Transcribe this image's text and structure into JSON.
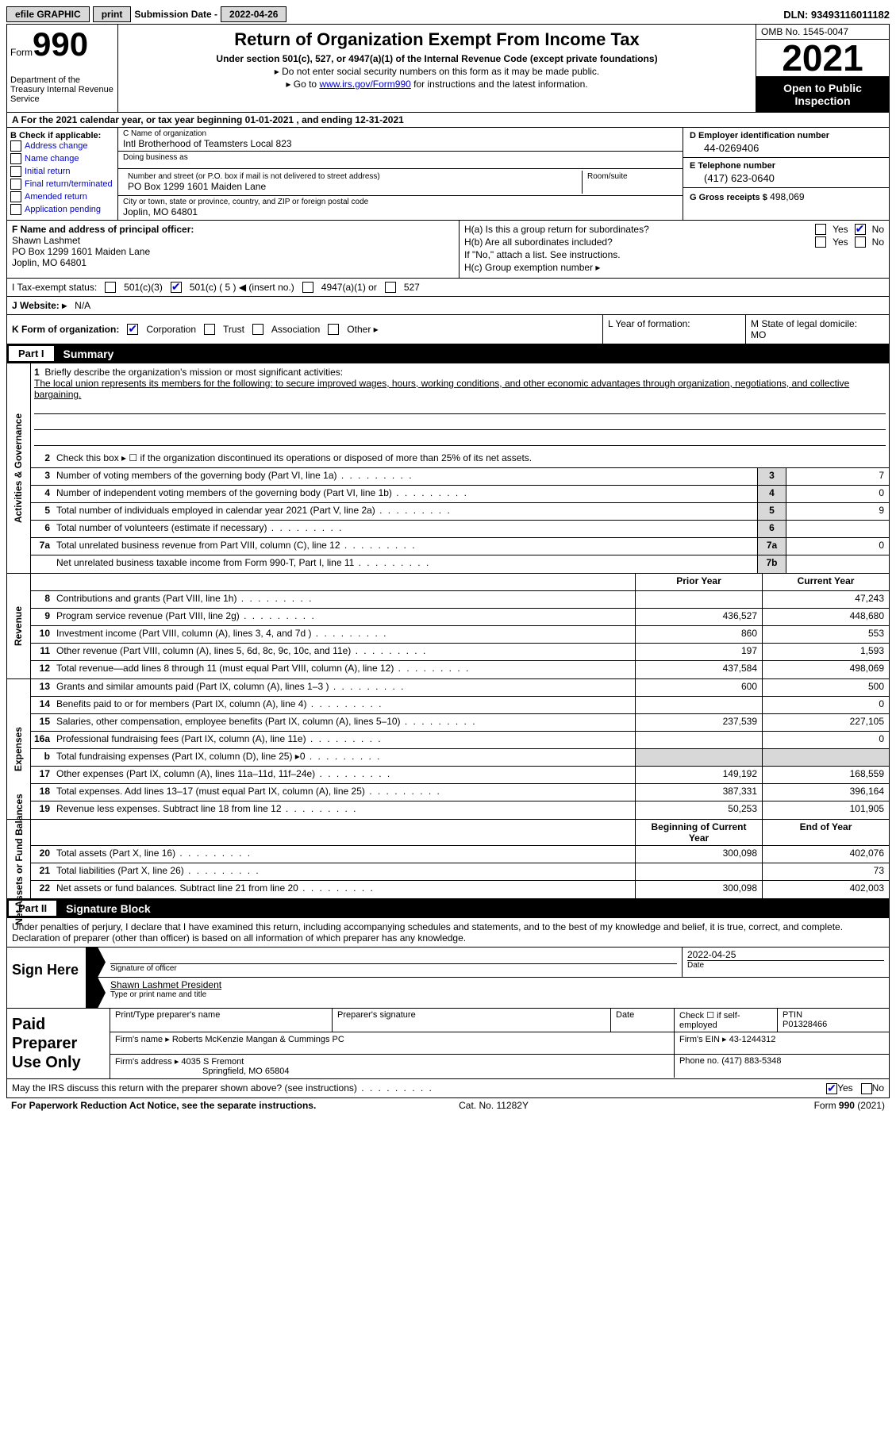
{
  "topbar": {
    "efile": "efile GRAPHIC",
    "print": "print",
    "sub_lbl": "Submission Date -",
    "sub_date": "2022-04-26",
    "dln_lbl": "DLN:",
    "dln": "93493116011182"
  },
  "header": {
    "form": "Form",
    "num": "990",
    "dept": "Department of the Treasury\nInternal Revenue Service",
    "title": "Return of Organization Exempt From Income Tax",
    "sub": "Under section 501(c), 527, or 4947(a)(1) of the Internal Revenue Code (except private foundations)",
    "note1": "▸ Do not enter social security numbers on this form as it may be made public.",
    "note2_pre": "▸ Go to ",
    "note2_link": "www.irs.gov/Form990",
    "note2_post": " for instructions and the latest information.",
    "omb": "OMB No. 1545-0047",
    "year": "2021",
    "inspect": "Open to Public Inspection"
  },
  "rowA": {
    "text_pre": "A For the 2021 calendar year, or tax year beginning ",
    "begin": "01-01-2021",
    "mid": "   , and ending ",
    "end": "12-31-2021"
  },
  "colB": {
    "hdr": "B Check if applicable:",
    "opts": [
      "Address change",
      "Name change",
      "Initial return",
      "Final return/terminated",
      "Amended return",
      "Application pending"
    ]
  },
  "colC": {
    "name_lbl": "C Name of organization",
    "name": "Intl Brotherhood of Teamsters Local 823",
    "dba_lbl": "Doing business as",
    "addr_lbl": "Number and street (or P.O. box if mail is not delivered to street address)",
    "addr": "PO Box 1299 1601 Maiden Lane",
    "room_lbl": "Room/suite",
    "city_lbl": "City or town, state or province, country, and ZIP or foreign postal code",
    "city": "Joplin, MO  64801"
  },
  "colD": {
    "d_lbl": "D Employer identification number",
    "d_val": "44-0269406",
    "e_lbl": "E Telephone number",
    "e_val": "(417) 623-0640",
    "g_lbl": "G Gross receipts $",
    "g_val": "498,069"
  },
  "rowF": {
    "lbl": "F  Name and address of principal officer:",
    "name": "Shawn Lashmet",
    "addr": "PO Box 1299 1601 Maiden Lane",
    "city": "Joplin, MO  64801"
  },
  "rowH": {
    "a": "H(a)  Is this a group return for subordinates?",
    "b": "H(b)  Are all subordinates included?",
    "bnote": "If \"No,\" attach a list. See instructions.",
    "c": "H(c)  Group exemption number ▸",
    "yes": "Yes",
    "no": "No"
  },
  "rowI": {
    "lbl": "I   Tax-exempt status:",
    "o1": "501(c)(3)",
    "o2": "501(c) ( 5 ) ◀ (insert no.)",
    "o3": "4947(a)(1) or",
    "o4": "527"
  },
  "rowJ": {
    "lbl": "J   Website: ▸",
    "val": "N/A"
  },
  "rowK": {
    "lbl": "K Form of organization:",
    "o1": "Corporation",
    "o2": "Trust",
    "o3": "Association",
    "o4": "Other ▸"
  },
  "rowL": {
    "lbl": "L Year of formation:"
  },
  "rowM": {
    "lbl": "M State of legal domicile:",
    "val": "MO"
  },
  "part1": {
    "num": "Part I",
    "title": "Summary"
  },
  "sidebars": [
    "Activities & Governance",
    "Revenue",
    "Expenses",
    "Net Assets or Fund Balances"
  ],
  "summary": {
    "l1_lbl": "Briefly describe the organization's mission or most significant activities:",
    "l1_txt": "The local union represents its members for the following: to secure improved wages, hours, working conditions, and other economic advantages through organization, negotiations, and collective bargaining.",
    "l2": "Check this box ▸ ☐  if the organization discontinued its operations or disposed of more than 25% of its net assets.",
    "l3": {
      "t": "Number of voting members of the governing body (Part VI, line 1a)",
      "b": "3",
      "v": "7"
    },
    "l4": {
      "t": "Number of independent voting members of the governing body (Part VI, line 1b)",
      "b": "4",
      "v": "0"
    },
    "l5": {
      "t": "Total number of individuals employed in calendar year 2021 (Part V, line 2a)",
      "b": "5",
      "v": "9"
    },
    "l6": {
      "t": "Total number of volunteers (estimate if necessary)",
      "b": "6",
      "v": ""
    },
    "l7a": {
      "t": "Total unrelated business revenue from Part VIII, column (C), line 12",
      "b": "7a",
      "v": "0"
    },
    "l7b": {
      "t": "Net unrelated business taxable income from Form 990-T, Part I, line 11",
      "b": "7b",
      "v": ""
    },
    "hdr_prior": "Prior Year",
    "hdr_curr": "Current Year",
    "rows_rev": [
      {
        "n": "8",
        "t": "Contributions and grants (Part VIII, line 1h)",
        "p": "",
        "c": "47,243"
      },
      {
        "n": "9",
        "t": "Program service revenue (Part VIII, line 2g)",
        "p": "436,527",
        "c": "448,680"
      },
      {
        "n": "10",
        "t": "Investment income (Part VIII, column (A), lines 3, 4, and 7d )",
        "p": "860",
        "c": "553"
      },
      {
        "n": "11",
        "t": "Other revenue (Part VIII, column (A), lines 5, 6d, 8c, 9c, 10c, and 11e)",
        "p": "197",
        "c": "1,593"
      },
      {
        "n": "12",
        "t": "Total revenue—add lines 8 through 11 (must equal Part VIII, column (A), line 12)",
        "p": "437,584",
        "c": "498,069"
      }
    ],
    "rows_exp": [
      {
        "n": "13",
        "t": "Grants and similar amounts paid (Part IX, column (A), lines 1–3 )",
        "p": "600",
        "c": "500"
      },
      {
        "n": "14",
        "t": "Benefits paid to or for members (Part IX, column (A), line 4)",
        "p": "",
        "c": "0"
      },
      {
        "n": "15",
        "t": "Salaries, other compensation, employee benefits (Part IX, column (A), lines 5–10)",
        "p": "237,539",
        "c": "227,105"
      },
      {
        "n": "16a",
        "t": "Professional fundraising fees (Part IX, column (A), line 11e)",
        "p": "",
        "c": "0"
      },
      {
        "n": "b",
        "t": "Total fundraising expenses (Part IX, column (D), line 25) ▸0",
        "p": "SHADE",
        "c": "SHADE"
      },
      {
        "n": "17",
        "t": "Other expenses (Part IX, column (A), lines 11a–11d, 11f–24e)",
        "p": "149,192",
        "c": "168,559"
      },
      {
        "n": "18",
        "t": "Total expenses. Add lines 13–17 (must equal Part IX, column (A), line 25)",
        "p": "387,331",
        "c": "396,164"
      },
      {
        "n": "19",
        "t": "Revenue less expenses. Subtract line 18 from line 12",
        "p": "50,253",
        "c": "101,905"
      }
    ],
    "hdr_bcy": "Beginning of Current Year",
    "hdr_eoy": "End of Year",
    "rows_na": [
      {
        "n": "20",
        "t": "Total assets (Part X, line 16)",
        "p": "300,098",
        "c": "402,076"
      },
      {
        "n": "21",
        "t": "Total liabilities (Part X, line 26)",
        "p": "",
        "c": "73"
      },
      {
        "n": "22",
        "t": "Net assets or fund balances. Subtract line 21 from line 20",
        "p": "300,098",
        "c": "402,003"
      }
    ]
  },
  "part2": {
    "num": "Part II",
    "title": "Signature Block"
  },
  "sigdecl": "Under penalties of perjury, I declare that I have examined this return, including accompanying schedules and statements, and to the best of my knowledge and belief, it is true, correct, and complete. Declaration of preparer (other than officer) is based on all information of which preparer has any knowledge.",
  "sign": {
    "here": "Sign Here",
    "sig_lbl": "Signature of officer",
    "date_lbl": "Date",
    "date": "2022-04-25",
    "name": "Shawn Lashmet  President",
    "name_lbl": "Type or print name and title"
  },
  "paid": {
    "hdr": "Paid Preparer Use Only",
    "c1": "Print/Type preparer's name",
    "c2": "Preparer's signature",
    "c3": "Date",
    "c4": "Check ☐ if self-employed",
    "c5_lbl": "PTIN",
    "c5": "P01328466",
    "firm_lbl": "Firm's name    ▸",
    "firm": "Roberts McKenzie Mangan & Cummings PC",
    "ein_lbl": "Firm's EIN ▸",
    "ein": "43-1244312",
    "addr_lbl": "Firm's address ▸",
    "addr1": "4035 S Fremont",
    "addr2": "Springfield, MO  65804",
    "phone_lbl": "Phone no.",
    "phone": "(417) 883-5348"
  },
  "discuss": {
    "t": "May the IRS discuss this return with the preparer shown above? (see instructions)",
    "yes": "Yes",
    "no": "No"
  },
  "footer": {
    "l": "For Paperwork Reduction Act Notice, see the separate instructions.",
    "c": "Cat. No. 11282Y",
    "r": "Form 990 (2021)"
  }
}
